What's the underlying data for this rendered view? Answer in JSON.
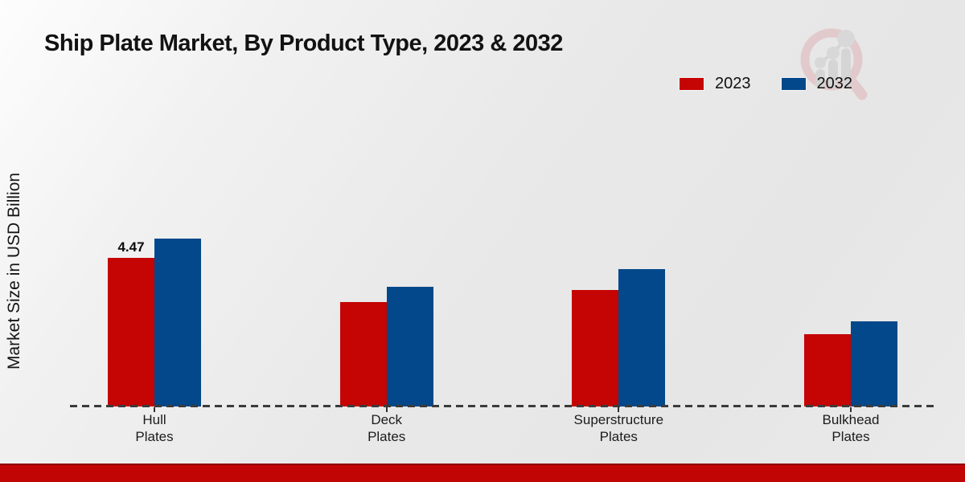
{
  "chart_data": {
    "type": "bar",
    "title": "Ship Plate Market, By Product Type, 2023 & 2032",
    "ylabel": "Market Size in USD Billion",
    "xlabel": "",
    "categories": [
      "Hull\nPlates",
      "Deck\nPlates",
      "Superstructure\nPlates",
      "Bulkhead\nPlates"
    ],
    "series": [
      {
        "name": "2023",
        "color": "#c50404",
        "values": [
          4.47,
          3.14,
          3.5,
          2.17
        ]
      },
      {
        "name": "2032",
        "color": "#03488a",
        "values": [
          5.05,
          3.6,
          4.13,
          2.56
        ]
      }
    ],
    "data_label": {
      "series_index": 0,
      "category_index": 0,
      "text": "4.47"
    },
    "ylim": [
      0,
      5.5
    ],
    "grid": false,
    "axis_line_style": "dashed",
    "legend_position": "top-right"
  },
  "branding": {
    "logo_name": "market-research-chart-magnifier-logo",
    "footer_bar_color": "#c10505"
  },
  "colors": {
    "background": "#e9e9e9",
    "series_2023": "#c50404",
    "series_2032": "#03488a",
    "baseline_dash": "#3b3b3b",
    "title_text": "#121212"
  }
}
